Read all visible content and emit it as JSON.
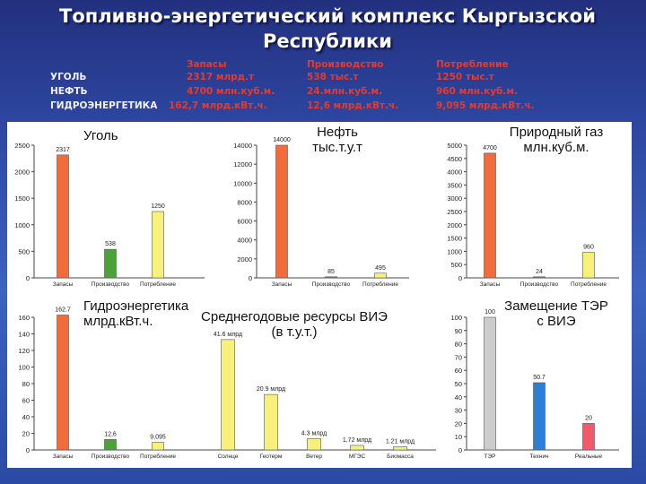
{
  "title_line1": "Топливно-энергетический комплекс Кыргызской",
  "title_line2": "Республики",
  "summary": {
    "headers": [
      "Запасы",
      "Производство",
      "Потребление"
    ],
    "rows": [
      {
        "label": "УГОЛЬ",
        "values": [
          "2317 млрд.т",
          "538 тыс.т",
          "1250 тыс.т"
        ]
      },
      {
        "label": "НЕФТЬ",
        "values": [
          "4700 млн.куб.м.",
          "24.млн.куб.м.",
          "960 млн.куб.м."
        ]
      },
      {
        "label": "ГИДРОЭНЕРГЕТИКА",
        "values": [
          "162,7 млрд.кВт.ч.",
          "12,6 млрд.кВт.ч.",
          "9,095 млрд.кВт.ч."
        ]
      }
    ]
  },
  "colors": {
    "reserves": "#f26b3a",
    "production": "#4aa337",
    "consumption": "#f7f07a",
    "renewables": "#f7f07a",
    "tep": "#cccccc",
    "tech": "#2c7fd6",
    "realistic": "#f05a6a"
  },
  "chart_data": [
    {
      "type": "bar",
      "title": "Уголь",
      "categories": [
        "Запасы",
        "Производство",
        "Потребление"
      ],
      "values": [
        2317,
        538,
        1250
      ],
      "labels": [
        "2317",
        "538",
        "1250"
      ],
      "ylim": [
        0,
        2500
      ],
      "yticks": [
        0,
        500,
        1000,
        1500,
        2000,
        2500
      ]
    },
    {
      "type": "bar",
      "title": "Нефть тыс.т.у.т",
      "title_lines": [
        "Нефть",
        "тыс.т.у.т"
      ],
      "categories": [
        "Запасы",
        "Производство",
        "Потребление"
      ],
      "values": [
        14000,
        85,
        495
      ],
      "labels": [
        "14000",
        "85",
        "495"
      ],
      "ylim": [
        0,
        14000
      ],
      "yticks": [
        0,
        2000,
        4000,
        6000,
        8000,
        10000,
        12000,
        14000
      ]
    },
    {
      "type": "bar",
      "title": "Природный газ млн.куб.м.",
      "title_lines": [
        "Природный газ",
        "млн.куб.м."
      ],
      "categories": [
        "Запасы",
        "Производство",
        "Потребление"
      ],
      "values": [
        4700,
        24,
        960
      ],
      "labels": [
        "4700",
        "24",
        "960"
      ],
      "ylim": [
        0,
        5000
      ],
      "yticks": [
        0,
        500,
        1000,
        1500,
        2000,
        2500,
        3000,
        3500,
        4000,
        4500,
        5000
      ]
    },
    {
      "type": "bar",
      "title": "Гидроэнергетика млрд.кВт.ч.",
      "title_lines": [
        "Гидроэнергетика",
        "млрд.кВт.ч."
      ],
      "categories": [
        "Запасы",
        "Производство",
        "Потребление"
      ],
      "values": [
        162.7,
        12.6,
        9.095
      ],
      "labels": [
        "162.7",
        "12,6",
        "9,095"
      ],
      "ylim": [
        0,
        160
      ],
      "yticks": [
        0,
        20,
        40,
        60,
        80,
        100,
        120,
        140,
        160
      ]
    },
    {
      "type": "bar",
      "title": "Среднегодовые ресурсы ВИЭ (в т.у.т.)",
      "title_lines": [
        "Среднегодовые ресурсы ВИЭ",
        "(в т.у.т.)"
      ],
      "categories": [
        "Солнце",
        "Геотерм",
        "Ветер",
        "МГЭС",
        "Биомасса"
      ],
      "values": [
        41.6,
        20.9,
        4.3,
        1.72,
        1.21
      ],
      "labels": [
        "41.6 млрд",
        "20.9 млрд",
        "4.3 млрд",
        "1,72 млрд",
        "1.21 млрд"
      ],
      "ylim": [
        0,
        50
      ]
    },
    {
      "type": "bar",
      "title": "Замещение ТЭР с ВИЭ",
      "title_lines": [
        "Замещение ТЭР",
        "с ВИЭ"
      ],
      "categories": [
        "ТЭР",
        "Технич",
        "Реальные"
      ],
      "values": [
        100,
        50.7,
        20
      ],
      "labels": [
        "100",
        "50.7",
        "20"
      ],
      "ylim": [
        0,
        100
      ],
      "yticks": [
        0,
        10,
        20,
        30,
        40,
        50,
        60,
        70,
        80,
        90,
        100
      ]
    }
  ]
}
